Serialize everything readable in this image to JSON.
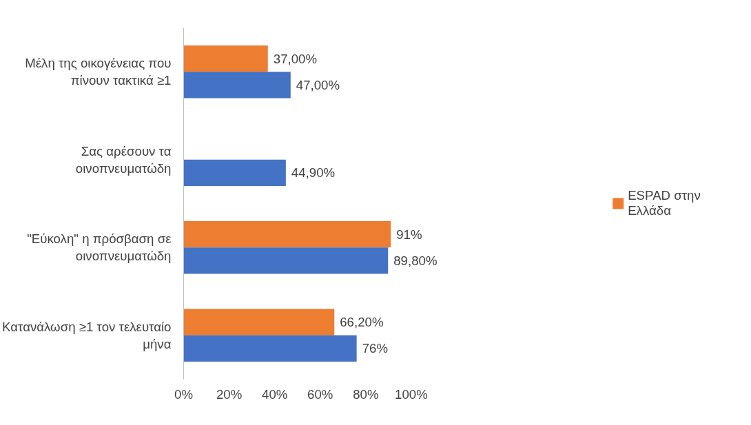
{
  "chart_data": {
    "type": "bar",
    "orientation": "horizontal",
    "categories": [
      "Μέλη της οικογένειας που πίνουν τακτικά ≥1",
      "Σας αρέσουν τα οινοπνευματώδη",
      "\"Εύκολη\" η πρόσβαση σε οινοπνευματώδη",
      "Κατανάλωση ≥1 τον τελευταίο μήνα"
    ],
    "series": [
      {
        "name": "ESPAD στην Ελλάδα",
        "color": "#ed7d31",
        "values": [
          37,
          null,
          91,
          66.2
        ],
        "value_labels": [
          "37,00%",
          null,
          "91%",
          "66,20%"
        ]
      },
      {
        "color": "#4472c4",
        "values": [
          47,
          44.9,
          89.8,
          76
        ],
        "value_labels": [
          "47,00%",
          "44,90%",
          "89,80%",
          "76%"
        ]
      }
    ],
    "xlim": [
      0,
      100
    ],
    "xticks": [
      {
        "value": 0,
        "label": "0%"
      },
      {
        "value": 20,
        "label": "20%"
      },
      {
        "value": 40,
        "label": "40%"
      },
      {
        "value": 60,
        "label": "60%"
      },
      {
        "value": 80,
        "label": "80%"
      },
      {
        "value": 100,
        "label": "100%"
      }
    ],
    "grid": false,
    "legend": "right"
  }
}
